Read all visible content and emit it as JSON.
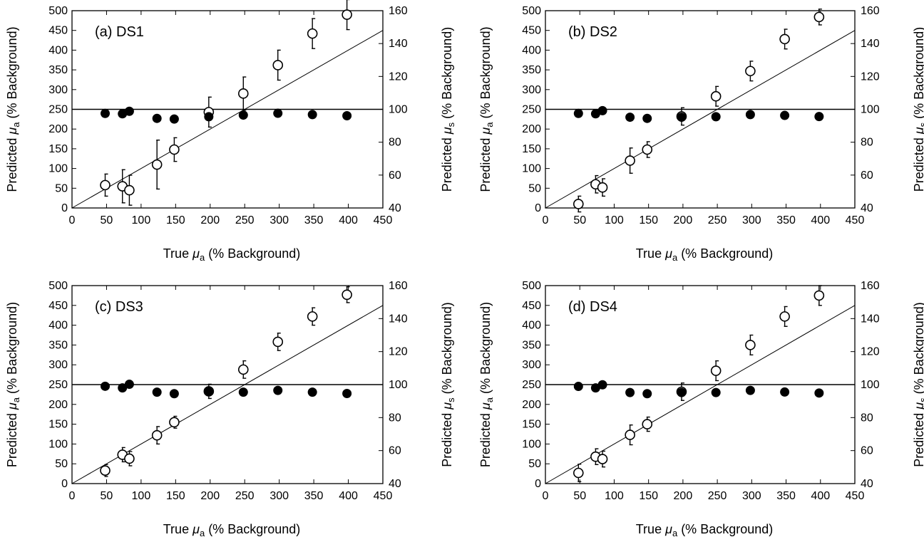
{
  "chart_data": [
    {
      "type": "scatter",
      "title": "(a) DS1",
      "xlabel": "True μa (% Background)",
      "ylabel_left": "Predicted μa (% Background)",
      "ylabel_right": "Predicted μs (% Background)",
      "xlim": [
        0,
        450
      ],
      "ylim_left": [
        0,
        500
      ],
      "ylim_right": [
        40,
        160
      ],
      "xticks": [
        "0",
        "50",
        "100",
        "150",
        "200",
        "250",
        "300",
        "350",
        "400",
        "450"
      ],
      "yticks_left": [
        "0",
        "50",
        "100",
        "150",
        "200",
        "250",
        "300",
        "350",
        "400",
        "450",
        "500"
      ],
      "yticks_right": [
        "40",
        "60",
        "80",
        "100",
        "120",
        "140",
        "160"
      ],
      "grid": false,
      "series": [
        {
          "marker": "open-circle",
          "axis": "left",
          "x": [
            48,
            73,
            83,
            123,
            148,
            198,
            248,
            298,
            348,
            398
          ],
          "y": [
            58,
            55,
            45,
            110,
            148,
            243,
            290,
            362,
            442,
            490
          ],
          "err": [
            28,
            42,
            38,
            62,
            30,
            38,
            42,
            38,
            38,
            38
          ]
        },
        {
          "marker": "filled-circle",
          "axis": "right",
          "x": [
            48,
            73,
            83,
            123,
            148,
            198,
            248,
            298,
            348,
            398
          ],
          "y": [
            97.5,
            97.3,
            98.8,
            94.5,
            94.1,
            95.5,
            96.5,
            97.6,
            96.8,
            96.1
          ]
        }
      ],
      "reference_lines": [
        {
          "label": "y = x",
          "axis": "left",
          "from": [
            0,
            0
          ],
          "to": [
            450,
            450
          ]
        },
        {
          "label": "100%",
          "axis": "right",
          "y": 100
        }
      ]
    },
    {
      "type": "scatter",
      "title": "(b) DS2",
      "xlabel": "True μa (% Background)",
      "ylabel_left": "Predicted μa (% Background)",
      "ylabel_right": "Predicted μs (% Background)",
      "xlim": [
        0,
        450
      ],
      "ylim_left": [
        0,
        500
      ],
      "ylim_right": [
        40,
        160
      ],
      "xticks": [
        "0",
        "50",
        "100",
        "150",
        "200",
        "250",
        "300",
        "350",
        "400",
        "450"
      ],
      "yticks_left": [
        "0",
        "50",
        "100",
        "150",
        "200",
        "250",
        "300",
        "350",
        "400",
        "450",
        "500"
      ],
      "yticks_right": [
        "40",
        "60",
        "80",
        "100",
        "120",
        "140",
        "160"
      ],
      "grid": false,
      "series": [
        {
          "marker": "open-circle",
          "axis": "left",
          "x": [
            48,
            73,
            83,
            123,
            148,
            198,
            248,
            298,
            348,
            398
          ],
          "y": [
            10,
            60,
            52,
            120,
            148,
            232,
            283,
            347,
            428,
            484
          ],
          "err": [
            20,
            22,
            22,
            32,
            20,
            22,
            25,
            25,
            25,
            20
          ]
        },
        {
          "marker": "filled-circle",
          "axis": "right",
          "x": [
            48,
            73,
            83,
            123,
            148,
            198,
            248,
            298,
            348,
            398
          ],
          "y": [
            97.5,
            97.3,
            99.2,
            95.2,
            94.5,
            95.2,
            95.5,
            96.8,
            96.3,
            95.6
          ]
        }
      ],
      "reference_lines": [
        {
          "label": "y = x",
          "axis": "left",
          "from": [
            0,
            0
          ],
          "to": [
            450,
            450
          ]
        },
        {
          "label": "100%",
          "axis": "right",
          "y": 100
        }
      ]
    },
    {
      "type": "scatter",
      "title": "(c) DS3",
      "xlabel": "True μa (% Background)",
      "ylabel_left": "Predicted μa (% Background)",
      "ylabel_right": "Predicted μs (% Background)",
      "xlim": [
        0,
        450
      ],
      "ylim_left": [
        0,
        500
      ],
      "ylim_right": [
        40,
        160
      ],
      "xticks": [
        "0",
        "50",
        "100",
        "150",
        "200",
        "250",
        "300",
        "350",
        "400",
        "450"
      ],
      "yticks_left": [
        "0",
        "50",
        "100",
        "150",
        "200",
        "250",
        "300",
        "350",
        "400",
        "450",
        "500"
      ],
      "yticks_right": [
        "40",
        "60",
        "80",
        "100",
        "120",
        "140",
        "160"
      ],
      "grid": false,
      "series": [
        {
          "marker": "open-circle",
          "axis": "left",
          "x": [
            48,
            73,
            83,
            123,
            148,
            198,
            248,
            298,
            348,
            398
          ],
          "y": [
            33,
            73,
            63,
            122,
            155,
            233,
            288,
            358,
            422,
            477
          ],
          "err": [
            15,
            18,
            18,
            22,
            15,
            18,
            22,
            22,
            22,
            20
          ]
        },
        {
          "marker": "filled-circle",
          "axis": "right",
          "x": [
            48,
            73,
            83,
            123,
            148,
            198,
            248,
            298,
            348,
            398
          ],
          "y": [
            99.0,
            98.0,
            100.2,
            95.4,
            94.5,
            95.9,
            95.4,
            96.5,
            95.4,
            94.6
          ]
        }
      ],
      "reference_lines": [
        {
          "label": "y = x",
          "axis": "left",
          "from": [
            0,
            0
          ],
          "to": [
            450,
            450
          ]
        },
        {
          "label": "100%",
          "axis": "right",
          "y": 100
        }
      ]
    },
    {
      "type": "scatter",
      "title": "(d) DS4",
      "xlabel": "True μa (% Background)",
      "ylabel_left": "Predicted μa (% Background)",
      "ylabel_right": "Predicted μs (% Background)",
      "xlim": [
        0,
        450
      ],
      "ylim_left": [
        0,
        500
      ],
      "ylim_right": [
        40,
        160
      ],
      "xticks": [
        "0",
        "50",
        "100",
        "150",
        "200",
        "250",
        "300",
        "350",
        "400",
        "450"
      ],
      "yticks_left": [
        "0",
        "50",
        "100",
        "150",
        "200",
        "250",
        "300",
        "350",
        "400",
        "450",
        "500"
      ],
      "yticks_right": [
        "40",
        "60",
        "80",
        "100",
        "120",
        "140",
        "160"
      ],
      "grid": false,
      "series": [
        {
          "marker": "open-circle",
          "axis": "left",
          "x": [
            48,
            73,
            83,
            123,
            148,
            198,
            248,
            298,
            348,
            398
          ],
          "y": [
            27,
            68,
            62,
            123,
            150,
            232,
            285,
            350,
            422,
            475
          ],
          "err": [
            22,
            20,
            20,
            25,
            18,
            22,
            25,
            25,
            25,
            25
          ]
        },
        {
          "marker": "filled-circle",
          "axis": "right",
          "x": [
            48,
            73,
            83,
            123,
            148,
            198,
            248,
            298,
            348,
            398
          ],
          "y": [
            98.9,
            98.0,
            99.9,
            95.2,
            94.5,
            95.2,
            95.2,
            96.5,
            95.5,
            94.9
          ]
        }
      ],
      "reference_lines": [
        {
          "label": "y = x",
          "axis": "left",
          "from": [
            0,
            0
          ],
          "to": [
            450,
            450
          ]
        },
        {
          "label": "100%",
          "axis": "right",
          "y": 100
        }
      ]
    }
  ],
  "colors": {
    "ink": "#000000",
    "background": "#ffffff"
  }
}
